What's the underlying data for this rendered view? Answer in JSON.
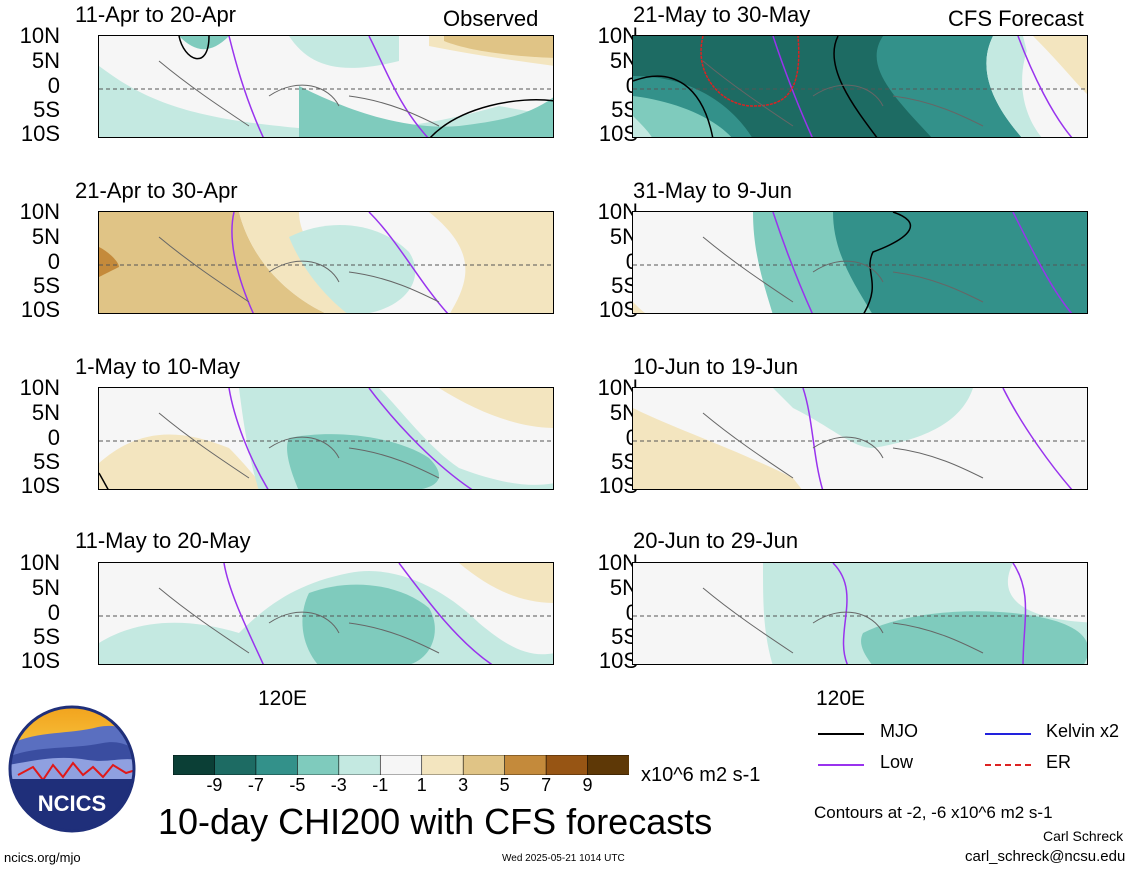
{
  "header": {
    "observed_label": "Observed",
    "forecast_label": "CFS Forecast"
  },
  "latitude_labels": [
    "10N",
    "5N",
    "0",
    "5S",
    "10S"
  ],
  "longitude_label": "120E",
  "panels": [
    {
      "title": "11-Apr to 20-Apr",
      "column": "observed",
      "row": 0
    },
    {
      "title": "21-Apr to 30-Apr",
      "column": "observed",
      "row": 1
    },
    {
      "title": "1-May to 10-May",
      "column": "observed",
      "row": 2
    },
    {
      "title": "11-May to 20-May",
      "column": "observed",
      "row": 3
    },
    {
      "title": "21-May to 30-May",
      "column": "forecast",
      "row": 0
    },
    {
      "title": "31-May to 9-Jun",
      "column": "forecast",
      "row": 1
    },
    {
      "title": "10-Jun to 19-Jun",
      "column": "forecast",
      "row": 2
    },
    {
      "title": "20-Jun to 29-Jun",
      "column": "forecast",
      "row": 3
    }
  ],
  "colorbar": {
    "ticks": [
      "-9",
      "-7",
      "-5",
      "-3",
      "-1",
      "1",
      "3",
      "5",
      "7",
      "9"
    ],
    "colors": [
      "#0b3f36",
      "#1d6b63",
      "#33918a",
      "#7fcbbd",
      "#c4e9e1",
      "#f6f6f6",
      "#f3e5bf",
      "#e0c486",
      "#c48a3b",
      "#975514",
      "#5e3806"
    ],
    "units": "x10^6 m2 s-1"
  },
  "main_title": "10-day CHI200 with CFS forecasts",
  "wave_legend": [
    {
      "label": "MJO",
      "color": "#000000"
    },
    {
      "label": "Kelvin x2",
      "color": "#2222dd"
    },
    {
      "label": "Low",
      "color": "#9933ee"
    },
    {
      "label": "ER",
      "color": "#dd2222"
    }
  ],
  "contour_note": "Contours at -2, -6 x10^6 m2 s-1",
  "author": "Carl Schreck",
  "email": "carl_schreck@ncsu.edu",
  "website": "ncics.org/mjo",
  "timestamp": "Wed 2025-05-21 1014 UTC",
  "logo_text": "NCICS"
}
